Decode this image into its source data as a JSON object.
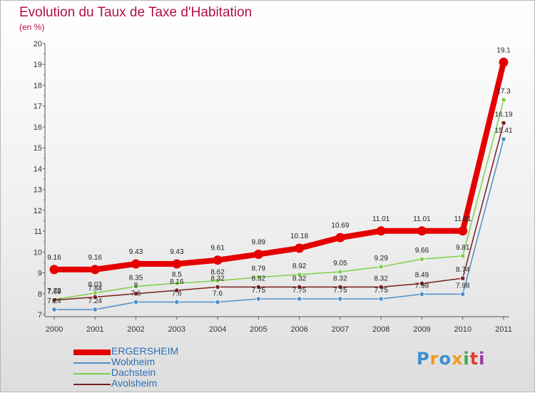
{
  "title": "Evolution du Taux de Taxe d'Habitation",
  "subtitle": "(en %)",
  "logo": {
    "text": "Proxiti",
    "colors": [
      "#3a8fd0",
      "#f19a1f",
      "#3a8fd0",
      "#f19a1f",
      "#3aa84a",
      "#e23c2c",
      "#9b3aa8"
    ]
  },
  "chart_data": {
    "type": "line",
    "x": [
      "2000",
      "2001",
      "2002",
      "2003",
      "2004",
      "2005",
      "2006",
      "2007",
      "2008",
      "2009",
      "2010",
      "2011"
    ],
    "ylim": [
      7,
      20
    ],
    "yticks": [
      "7",
      "8",
      "9",
      "10",
      "11",
      "12",
      "13",
      "14",
      "15",
      "16",
      "17",
      "18",
      "19",
      "20"
    ],
    "grid": false,
    "legend_position": "bottom-left",
    "series": [
      {
        "name": "ERGERSHEIM",
        "color": "#e50000",
        "values": [
          9.16,
          9.16,
          9.43,
          9.43,
          9.61,
          9.89,
          10.18,
          10.69,
          11.01,
          11.01,
          11.01,
          19.1
        ],
        "labels": [
          "9.16",
          "9.16",
          "9.43",
          "9.43",
          "9.61",
          "9.89",
          "10.18",
          "10.69",
          "11.01",
          "11.01",
          "11.01",
          "19.1"
        ]
      },
      {
        "name": "Wolxheim",
        "color": "#4f8fc7",
        "values": [
          7.24,
          7.24,
          7.6,
          7.6,
          7.6,
          7.75,
          7.75,
          7.75,
          7.75,
          7.98,
          7.98,
          15.41
        ],
        "labels": [
          "7.24",
          "7.24",
          "7.6",
          "7.6",
          "7.6",
          "7.75",
          "7.75",
          "7.75",
          "7.75",
          "7.98",
          "7.98",
          "15.41"
        ]
      },
      {
        "name": "Dachstein",
        "color": "#7ed04a",
        "values": [
          7.72,
          8.03,
          8.35,
          8.5,
          8.62,
          8.79,
          8.92,
          9.05,
          9.29,
          9.66,
          9.81,
          17.3
        ],
        "labels": [
          "7.72",
          "8.03",
          "8.35",
          "8.5",
          "8.62",
          "8.79",
          "8.92",
          "9.05",
          "9.29",
          "9.66",
          "9.81",
          "17.3"
        ]
      },
      {
        "name": "Avolsheim",
        "color": "#7a1f1f",
        "values": [
          7.69,
          7.84,
          8.0,
          8.16,
          8.32,
          8.32,
          8.32,
          8.32,
          8.32,
          8.49,
          8.74,
          16.19
        ],
        "labels": [
          "7.69",
          "7.84",
          "8",
          "8.16",
          "8.32",
          "8.32",
          "8.32",
          "8.32",
          "8.32",
          "8.49",
          "8.74",
          "16.19"
        ]
      }
    ]
  }
}
